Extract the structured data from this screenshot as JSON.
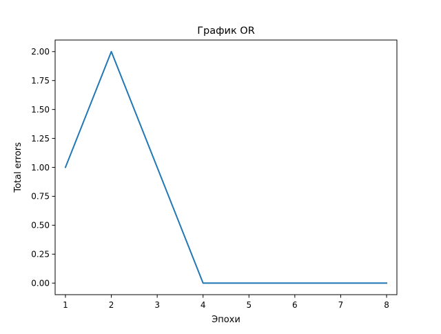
{
  "chart_data": {
    "type": "line",
    "title": "График OR",
    "xlabel": "Эпохи",
    "ylabel": "Total errors",
    "x": [
      1,
      2,
      3,
      4,
      5,
      6,
      7,
      8
    ],
    "series": [
      {
        "values": [
          1,
          2,
          1,
          0,
          0,
          0,
          0,
          0
        ],
        "color": "#1f77b4"
      }
    ],
    "xlim": [
      0.775,
      8.225
    ],
    "ylim": [
      -0.1,
      2.1
    ],
    "x_ticks": [
      {
        "value": 1,
        "label": "1"
      },
      {
        "value": 2,
        "label": "2"
      },
      {
        "value": 3,
        "label": "3"
      },
      {
        "value": 4,
        "label": "4"
      },
      {
        "value": 5,
        "label": "5"
      },
      {
        "value": 6,
        "label": "6"
      },
      {
        "value": 7,
        "label": "7"
      },
      {
        "value": 8,
        "label": "8"
      }
    ],
    "y_ticks": [
      {
        "value": 0.0,
        "label": "0.00"
      },
      {
        "value": 0.25,
        "label": "0.25"
      },
      {
        "value": 0.5,
        "label": "0.50"
      },
      {
        "value": 0.75,
        "label": "0.75"
      },
      {
        "value": 1.0,
        "label": "1.00"
      },
      {
        "value": 1.25,
        "label": "1.25"
      },
      {
        "value": 1.5,
        "label": "1.50"
      },
      {
        "value": 1.75,
        "label": "1.75"
      },
      {
        "value": 2.0,
        "label": "2.00"
      }
    ],
    "grid": false,
    "legend": "none"
  }
}
